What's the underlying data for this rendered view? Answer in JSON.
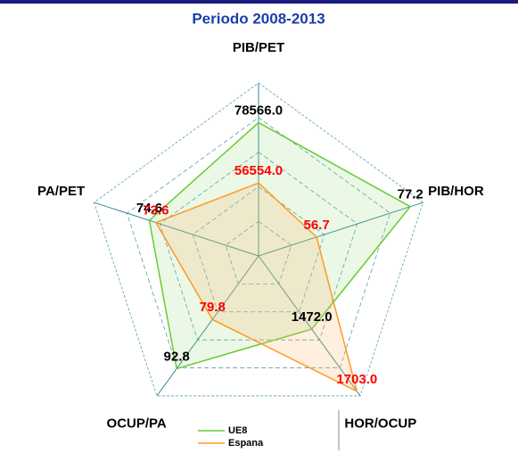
{
  "chart_data": {
    "type": "radar",
    "title": "Periodo 2008-2013",
    "categories": [
      "PIB/PET",
      "PIB/HOR",
      "HOR/OCUP",
      "OCUP/PA",
      "PA/PET"
    ],
    "axis_lims": [
      [
        30000,
        93000
      ],
      [
        44,
        80
      ],
      [
        1200,
        1720
      ],
      [
        63,
        100
      ],
      [
        58,
        83
      ]
    ],
    "series": [
      {
        "name": "UE8",
        "color": "#66cc33",
        "label_color": "#000000",
        "values": [
          78566,
          77.2,
          1472,
          92.8,
          74.6
        ],
        "value_labels": [
          "78566.0",
          "77.2",
          "1472.0",
          "92.8",
          "74.6"
        ]
      },
      {
        "name": "Espana",
        "color": "#ff9922",
        "label_color": "#ff0000",
        "values": [
          56554,
          56.7,
          1703,
          79.8,
          73.6
        ],
        "value_labels": [
          "56554.0",
          "56.7",
          "1703.0",
          "79.8",
          "73.6"
        ]
      }
    ]
  }
}
